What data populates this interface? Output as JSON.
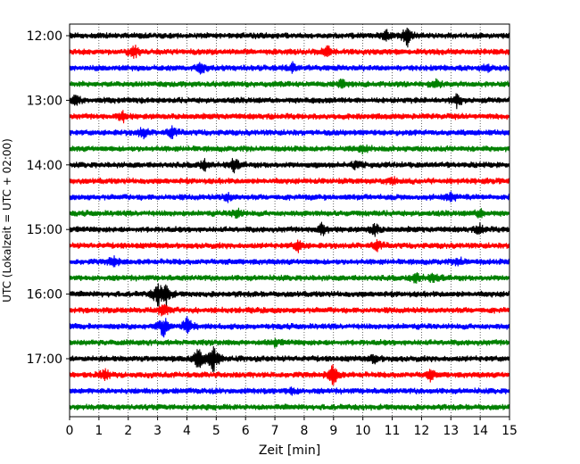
{
  "chart_data": {
    "type": "line",
    "title": "",
    "xlabel": "Zeit  [min]",
    "ylabel": "UTC (Lokalzeit = UTC + 02:00)",
    "xlim": [
      0,
      15
    ],
    "x_ticks": [
      "0",
      "1",
      "2",
      "3",
      "4",
      "5",
      "6",
      "7",
      "8",
      "9",
      "10",
      "11",
      "12",
      "13",
      "14",
      "15"
    ],
    "y_ticks": [
      "12:00",
      "13:00",
      "14:00",
      "15:00",
      "16:00",
      "17:00"
    ],
    "grid": {
      "x": true,
      "y": false,
      "style": "dotted"
    },
    "line_colors": [
      "#000000",
      "#ff0000",
      "#0000ff",
      "#008000"
    ],
    "traces": [
      {
        "start": "12:00",
        "color": "#000000",
        "events": [
          {
            "t": 10.8,
            "amp": 0.45
          },
          {
            "t": 11.5,
            "amp": 0.9
          }
        ]
      },
      {
        "start": "12:15",
        "color": "#ff0000",
        "events": [
          {
            "t": 2.2,
            "amp": 0.5
          },
          {
            "t": 8.8,
            "amp": 0.45
          }
        ]
      },
      {
        "start": "12:30",
        "color": "#0000ff",
        "events": [
          {
            "t": 4.5,
            "amp": 0.45
          },
          {
            "t": 7.6,
            "amp": 0.35
          },
          {
            "t": 14.2,
            "amp": 0.3
          }
        ]
      },
      {
        "start": "12:45",
        "color": "#008000",
        "events": [
          {
            "t": 9.3,
            "amp": 0.4
          },
          {
            "t": 12.5,
            "amp": 0.35
          }
        ]
      },
      {
        "start": "13:00",
        "color": "#000000",
        "events": [
          {
            "t": 0.2,
            "amp": 0.45
          },
          {
            "t": 13.2,
            "amp": 0.55
          }
        ]
      },
      {
        "start": "13:15",
        "color": "#ff0000",
        "events": [
          {
            "t": 1.8,
            "amp": 0.45
          }
        ]
      },
      {
        "start": "13:30",
        "color": "#0000ff",
        "events": [
          {
            "t": 2.5,
            "amp": 0.45
          },
          {
            "t": 3.5,
            "amp": 0.45
          }
        ]
      },
      {
        "start": "13:45",
        "color": "#008000",
        "events": [
          {
            "t": 10.0,
            "amp": 0.3
          }
        ]
      },
      {
        "start": "14:00",
        "color": "#000000",
        "events": [
          {
            "t": 4.6,
            "amp": 0.45
          },
          {
            "t": 5.6,
            "amp": 0.55
          },
          {
            "t": 9.8,
            "amp": 0.4
          }
        ]
      },
      {
        "start": "14:15",
        "color": "#ff0000",
        "events": [
          {
            "t": 11.0,
            "amp": 0.3
          }
        ]
      },
      {
        "start": "14:30",
        "color": "#0000ff",
        "events": [
          {
            "t": 5.4,
            "amp": 0.35
          },
          {
            "t": 13.0,
            "amp": 0.35
          }
        ]
      },
      {
        "start": "14:45",
        "color": "#008000",
        "events": [
          {
            "t": 5.7,
            "amp": 0.45
          },
          {
            "t": 14.0,
            "amp": 0.35
          }
        ]
      },
      {
        "start": "15:00",
        "color": "#000000",
        "events": [
          {
            "t": 8.6,
            "amp": 0.55
          },
          {
            "t": 10.4,
            "amp": 0.5
          },
          {
            "t": 14.0,
            "amp": 0.35
          }
        ]
      },
      {
        "start": "15:15",
        "color": "#ff0000",
        "events": [
          {
            "t": 7.8,
            "amp": 0.45
          },
          {
            "t": 10.5,
            "amp": 0.4
          }
        ]
      },
      {
        "start": "15:30",
        "color": "#0000ff",
        "events": [
          {
            "t": 1.5,
            "amp": 0.45
          },
          {
            "t": 13.3,
            "amp": 0.35
          }
        ]
      },
      {
        "start": "15:45",
        "color": "#008000",
        "events": [
          {
            "t": 11.8,
            "amp": 0.5
          },
          {
            "t": 12.4,
            "amp": 0.4
          }
        ]
      },
      {
        "start": "16:00",
        "color": "#000000",
        "events": [
          {
            "t": 3.0,
            "amp": 1.0
          },
          {
            "t": 3.3,
            "amp": 0.8
          }
        ]
      },
      {
        "start": "16:15",
        "color": "#ff0000",
        "events": [
          {
            "t": 3.2,
            "amp": 0.6
          }
        ]
      },
      {
        "start": "16:30",
        "color": "#0000ff",
        "events": [
          {
            "t": 3.2,
            "amp": 0.9
          },
          {
            "t": 4.0,
            "amp": 0.8
          }
        ]
      },
      {
        "start": "16:45",
        "color": "#008000",
        "events": [
          {
            "t": 7.0,
            "amp": 0.25
          }
        ]
      },
      {
        "start": "17:00",
        "color": "#000000",
        "events": [
          {
            "t": 4.4,
            "amp": 1.1
          },
          {
            "t": 4.9,
            "amp": 1.2
          },
          {
            "t": 10.4,
            "amp": 0.35
          }
        ]
      },
      {
        "start": "17:15",
        "color": "#ff0000",
        "events": [
          {
            "t": 1.2,
            "amp": 0.5
          },
          {
            "t": 9.0,
            "amp": 1.0
          },
          {
            "t": 12.3,
            "amp": 0.4
          }
        ]
      },
      {
        "start": "17:30",
        "color": "#0000ff",
        "events": [
          {
            "t": 7.6,
            "amp": 0.3
          }
        ]
      },
      {
        "start": "17:45",
        "color": "#008000",
        "events": []
      }
    ]
  }
}
